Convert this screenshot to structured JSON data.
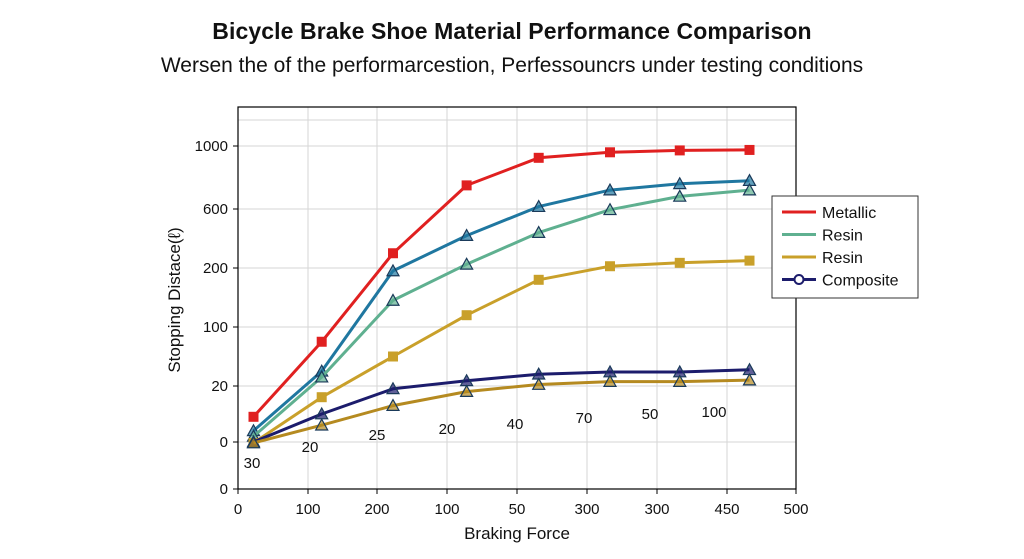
{
  "chart_data": {
    "type": "line",
    "title": "Bicycle Brake Shoe Material Performance Comparison",
    "subtitle": "Wersen the of the performarcestion, Perfessouncrs under testing conditions",
    "xlabel": "Braking Force",
    "ylabel": "Stopping Distace(ℓ)",
    "x_ticks": [
      "0",
      "100",
      "200",
      "100",
      "50",
      "300",
      "300",
      "450",
      "500"
    ],
    "y_ticks": [
      "0",
      "0",
      "20",
      "100",
      "200",
      "600",
      "1000"
    ],
    "x_points": [
      20,
      108,
      200,
      295,
      388,
      480,
      570,
      660
    ],
    "grid": true,
    "legend_position": "right",
    "series": [
      {
        "name": "Metallic",
        "color": "#e02020",
        "marker": "square",
        "values": [
          9,
          80,
          300,
          750,
          925,
          960,
          972,
          975
        ]
      },
      {
        "name": "",
        "color": "#1f77a0",
        "marker": "triangle",
        "values": [
          4,
          40,
          195,
          420,
          615,
          720,
          760,
          780
        ]
      },
      {
        "name": "Resin",
        "color": "#5fb090",
        "marker": "triangle",
        "values": [
          2,
          32,
          145,
          225,
          440,
          595,
          680,
          720
        ]
      },
      {
        "name": "Resin",
        "color": "#c9a02a",
        "marker": "square",
        "values": [
          -1,
          16,
          60,
          120,
          180,
          212,
          235,
          250
        ]
      },
      {
        "name": "Composite",
        "color": "#1c1c6c",
        "marker": "triangle",
        "values": [
          0,
          10,
          19,
          27,
          36,
          39,
          39,
          42
        ]
      },
      {
        "name": "",
        "color": "#b58a20",
        "marker": "triangle",
        "values": [
          -1,
          6,
          13,
          18,
          22,
          26,
          26,
          28
        ]
      }
    ],
    "annotations": [
      "30",
      "20",
      "25",
      "20",
      "40",
      "70",
      "50",
      "100"
    ]
  },
  "colors": {
    "grid": "#d6d6d6",
    "axis": "#000000",
    "background": "#ffffff"
  }
}
